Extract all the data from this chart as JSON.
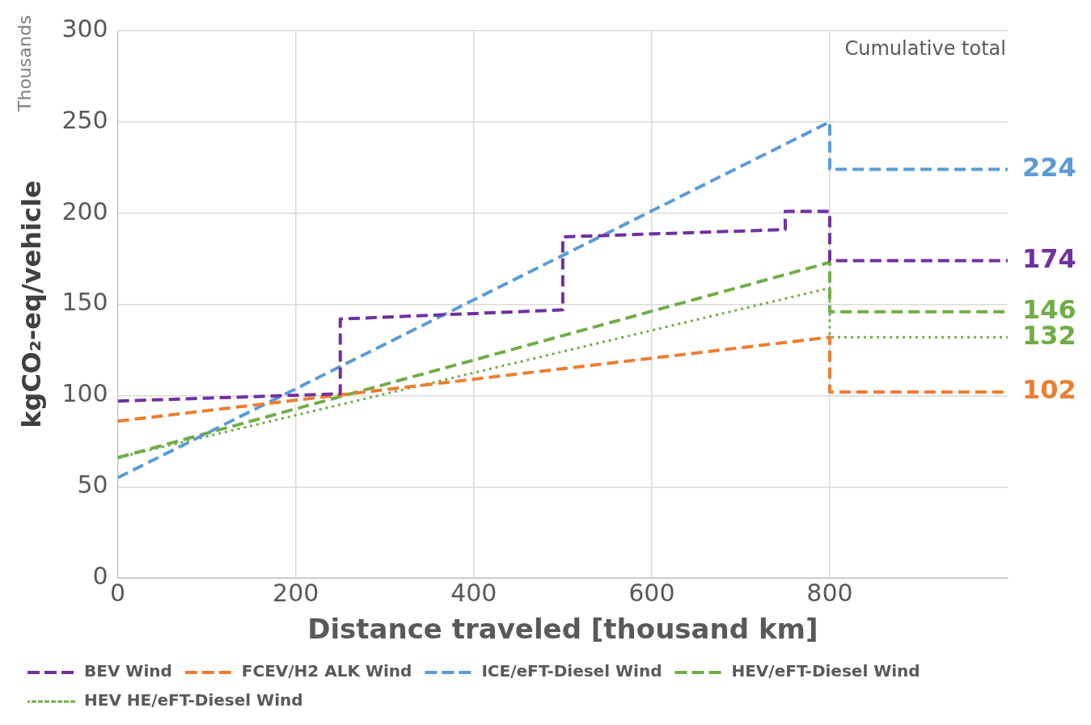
{
  "chart_data": {
    "type": "line",
    "xlabel": "Distance traveled [thousand km]",
    "ylabel": "kgCO₂-eq/vehicle",
    "xlim": [
      0,
      1000
    ],
    "xticks": [
      0,
      200,
      400,
      600,
      800
    ],
    "ylim": [
      0,
      300
    ],
    "yticks": [
      0,
      50,
      100,
      150,
      200,
      250,
      300
    ],
    "grid": true,
    "legend": "bottom",
    "marker": "none",
    "annotations": [
      "Thousands",
      "Cumulative total"
    ],
    "series": [
      {
        "name": "BEV Wind",
        "color": "#7030a0",
        "line_style": "dashed",
        "x": [
          0,
          250,
          250,
          500,
          500,
          750,
          750,
          800,
          800,
          1000
        ],
        "values": [
          97,
          101,
          142,
          147,
          187,
          191,
          201,
          201,
          174,
          174
        ],
        "value_labels": [
          null,
          null,
          null,
          null,
          null,
          null,
          null,
          null,
          null,
          "174"
        ]
      },
      {
        "name": "FCEV/H2 ALK Wind",
        "color": "#ed7d31",
        "line_style": "dashed",
        "x": [
          0,
          800,
          800,
          1000
        ],
        "values": [
          86,
          132,
          102,
          102
        ],
        "value_labels": [
          null,
          null,
          null,
          "102"
        ]
      },
      {
        "name": "ICE/eFT-Diesel Wind",
        "color": "#5b9bd5",
        "line_style": "dashed",
        "x": [
          0,
          800,
          800,
          1000
        ],
        "values": [
          55,
          250,
          224,
          224
        ],
        "value_labels": [
          null,
          null,
          null,
          "224"
        ]
      },
      {
        "name": "HEV/eFT-Diesel Wind",
        "color": "#70ad47",
        "line_style": "dashed",
        "x": [
          0,
          800,
          800,
          1000
        ],
        "values": [
          66,
          173,
          146,
          146
        ],
        "value_labels": [
          null,
          null,
          null,
          "146"
        ]
      },
      {
        "name": "HEV HE/eFT-Diesel Wind",
        "color": "#70ad47",
        "line_style": "dotted",
        "x": [
          0,
          800,
          800,
          1000
        ],
        "values": [
          66,
          159,
          132,
          132
        ],
        "value_labels": [
          null,
          null,
          null,
          "132"
        ]
      }
    ]
  }
}
